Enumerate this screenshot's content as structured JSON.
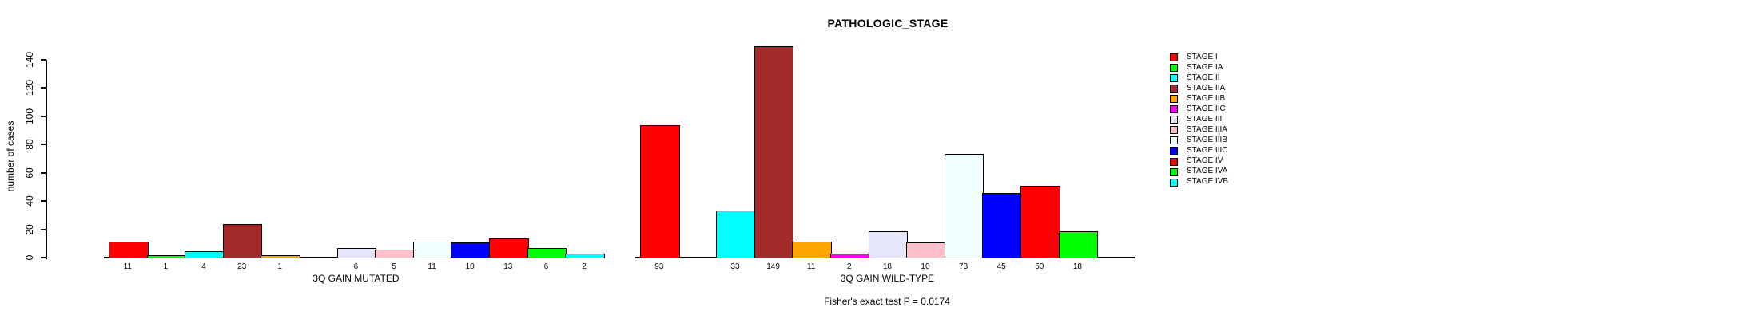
{
  "title": "PATHOLOGIC_STAGE",
  "footer": "Fisher's exact test P = 0.0174",
  "y_axis": {
    "label": "number of cases",
    "ticks": [
      "0",
      "20",
      "40",
      "60",
      "80",
      "100",
      "120",
      "140"
    ]
  },
  "legend": [
    {
      "label": "STAGE I",
      "color": "#ff0000"
    },
    {
      "label": "STAGE IA",
      "color": "#00ff00"
    },
    {
      "label": "STAGE II",
      "color": "#00ffff"
    },
    {
      "label": "STAGE IIA",
      "color": "#a52a2a"
    },
    {
      "label": "STAGE IIB",
      "color": "#ffa500"
    },
    {
      "label": "STAGE IIC",
      "color": "#ff00ff"
    },
    {
      "label": "STAGE III",
      "color": "#e6e6fa"
    },
    {
      "label": "STAGE IIIA",
      "color": "#ffc0cb"
    },
    {
      "label": "STAGE IIIB",
      "color": "#f0ffff"
    },
    {
      "label": "STAGE IIIC",
      "color": "#0000ff"
    },
    {
      "label": "STAGE IV",
      "color": "#ff0000"
    },
    {
      "label": "STAGE IVA",
      "color": "#00ff00"
    },
    {
      "label": "STAGE IVB",
      "color": "#00ffff"
    }
  ],
  "chart_data": {
    "type": "bar",
    "title": "PATHOLOGIC_STAGE",
    "ylabel": "number of cases",
    "ylim": [
      0,
      150
    ],
    "yticks": [
      0,
      20,
      40,
      60,
      80,
      100,
      120,
      140
    ],
    "grid": false,
    "legend_position": "right",
    "bar_value_labels": true,
    "categories": [
      "STAGE I",
      "STAGE IA",
      "STAGE II",
      "STAGE IIA",
      "STAGE IIB",
      "STAGE IIC",
      "STAGE III",
      "STAGE IIIA",
      "STAGE IIIB",
      "STAGE IIIC",
      "STAGE IV",
      "STAGE IVA",
      "STAGE IVB"
    ],
    "colors": [
      "#ff0000",
      "#00ff00",
      "#00ffff",
      "#a52a2a",
      "#ffa500",
      "#ff00ff",
      "#e6e6fa",
      "#ffc0cb",
      "#f0ffff",
      "#0000ff",
      "#ff0000",
      "#00ff00",
      "#00ffff"
    ],
    "series": [
      {
        "name": "3Q GAIN MUTATED",
        "values": [
          11,
          1,
          4,
          23,
          1,
          0,
          6,
          5,
          11,
          10,
          13,
          6,
          2
        ]
      },
      {
        "name": "3Q GAIN WILD-TYPE",
        "values": [
          93,
          0,
          33,
          149,
          11,
          2,
          18,
          10,
          73,
          45,
          50,
          18,
          0
        ]
      }
    ],
    "annotation": "Fisher's exact test P = 0.0174"
  }
}
